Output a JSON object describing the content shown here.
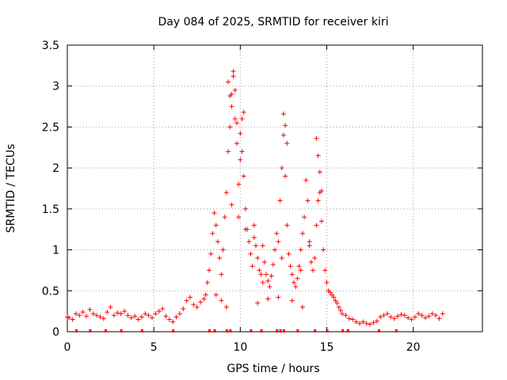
{
  "chart_data": {
    "type": "scatter",
    "title": "Day 084 of 2025, SRMTID for receiver kiri",
    "xlabel": "GPS time / hours",
    "ylabel": "SRMTID / TECUs",
    "xlim": [
      0,
      24
    ],
    "ylim": [
      0,
      3.5
    ],
    "grid": true,
    "marker": "+",
    "color": "#ff0000",
    "x_ticks": [
      "0",
      "5",
      "10",
      "15",
      "20"
    ],
    "x_tick_values": [
      0,
      5,
      10,
      15,
      20
    ],
    "y_ticks": [
      "0",
      "0.5",
      "1",
      "1.5",
      "2",
      "2.5",
      "3",
      "3.5"
    ],
    "y_tick_values": [
      0,
      0.5,
      1,
      1.5,
      2,
      2.5,
      3,
      3.5
    ],
    "baseline_markers_x": [
      0.5,
      1.3,
      2.2,
      3.1,
      4.3,
      6.1,
      8.2,
      8.5,
      9.2,
      9.4,
      10.6,
      11.2,
      12.1,
      12.3,
      12.5,
      13.3,
      14.3,
      15.0,
      15.9,
      16.2,
      18.0,
      19.0
    ],
    "series": [
      {
        "name": "SRMTID",
        "x": [
          0.0,
          0.1,
          0.3,
          0.5,
          0.7,
          0.9,
          1.1,
          1.3,
          1.5,
          1.7,
          1.9,
          2.1,
          2.3,
          2.5,
          2.7,
          2.9,
          3.1,
          3.3,
          3.5,
          3.7,
          3.9,
          4.1,
          4.3,
          4.5,
          4.7,
          4.9,
          5.1,
          5.3,
          5.5,
          5.7,
          5.9,
          6.1,
          6.3,
          6.5,
          6.7,
          6.9,
          7.1,
          7.3,
          7.5,
          7.7,
          7.9,
          8.0,
          8.1,
          8.2,
          8.3,
          8.4,
          8.5,
          8.6,
          8.7,
          8.8,
          8.9,
          9.0,
          9.1,
          9.2,
          9.3,
          9.4,
          9.5,
          9.6,
          9.7,
          9.8,
          9.9,
          10.0,
          10.1,
          10.2,
          10.3,
          10.4,
          10.5,
          10.6,
          10.7,
          10.8,
          10.9,
          11.0,
          11.1,
          11.2,
          11.3,
          11.4,
          11.5,
          11.6,
          11.7,
          11.8,
          11.9,
          12.0,
          12.1,
          12.2,
          12.3,
          12.4,
          12.5,
          12.6,
          12.7,
          12.8,
          12.9,
          13.0,
          13.1,
          13.2,
          13.3,
          13.4,
          13.5,
          13.6,
          13.7,
          13.8,
          13.9,
          14.0,
          14.1,
          14.2,
          14.3,
          14.4,
          14.5,
          14.6,
          14.7,
          14.8,
          14.9,
          15.0,
          15.1,
          15.2,
          15.3,
          15.4,
          15.5,
          15.6,
          15.7,
          15.8,
          15.9,
          16.1,
          16.3,
          16.5,
          16.7,
          16.9,
          17.1,
          17.3,
          17.5,
          17.7,
          17.9,
          18.1,
          18.3,
          18.5,
          18.7,
          18.9,
          19.1,
          19.3,
          19.5,
          19.7,
          19.9,
          20.1,
          20.3,
          20.5,
          20.7,
          20.9,
          21.1,
          21.3,
          21.5,
          21.7,
          9.3,
          9.4,
          9.5,
          9.6,
          9.7,
          9.8,
          10.0,
          10.1,
          10.2,
          12.5,
          12.6,
          12.7,
          14.4,
          14.5,
          14.6,
          14.7,
          9.5,
          9.9,
          10.3,
          10.8,
          11.3,
          12.4,
          13.5,
          14.0,
          8.6,
          8.9,
          9.2,
          11.0,
          11.6,
          12.2,
          13.0,
          13.6
        ],
        "y": [
          0.18,
          0.17,
          0.15,
          0.22,
          0.2,
          0.24,
          0.19,
          0.27,
          0.22,
          0.2,
          0.18,
          0.16,
          0.24,
          0.3,
          0.2,
          0.23,
          0.22,
          0.25,
          0.2,
          0.17,
          0.19,
          0.15,
          0.18,
          0.22,
          0.2,
          0.17,
          0.22,
          0.25,
          0.28,
          0.19,
          0.15,
          0.12,
          0.18,
          0.22,
          0.28,
          0.38,
          0.42,
          0.33,
          0.3,
          0.36,
          0.4,
          0.45,
          0.6,
          0.75,
          0.95,
          1.2,
          1.45,
          1.3,
          1.1,
          0.9,
          0.7,
          1.0,
          1.4,
          1.7,
          2.2,
          2.5,
          2.9,
          3.18,
          2.6,
          2.3,
          1.8,
          2.1,
          2.6,
          1.9,
          1.5,
          1.25,
          1.1,
          0.95,
          0.8,
          1.3,
          1.05,
          0.9,
          0.75,
          0.7,
          0.6,
          0.85,
          0.7,
          0.62,
          0.55,
          0.68,
          0.82,
          1.0,
          1.2,
          1.1,
          1.6,
          2.0,
          2.4,
          1.9,
          1.3,
          0.95,
          0.8,
          0.7,
          0.6,
          0.55,
          0.65,
          0.8,
          1.0,
          1.2,
          1.4,
          1.85,
          1.6,
          1.1,
          0.85,
          0.75,
          0.9,
          1.3,
          1.6,
          1.7,
          1.35,
          1.0,
          0.75,
          0.6,
          0.5,
          0.48,
          0.45,
          0.42,
          0.38,
          0.35,
          0.3,
          0.26,
          0.22,
          0.2,
          0.16,
          0.15,
          0.12,
          0.1,
          0.12,
          0.1,
          0.09,
          0.11,
          0.13,
          0.18,
          0.2,
          0.22,
          0.18,
          0.16,
          0.19,
          0.21,
          0.2,
          0.17,
          0.15,
          0.18,
          0.22,
          0.2,
          0.17,
          0.19,
          0.22,
          0.2,
          0.16,
          0.22,
          3.05,
          2.88,
          2.75,
          3.12,
          2.95,
          2.55,
          2.42,
          2.2,
          2.68,
          2.66,
          2.52,
          2.3,
          2.36,
          2.15,
          1.95,
          1.72,
          1.55,
          1.4,
          1.25,
          1.15,
          1.05,
          0.9,
          0.75,
          1.05,
          0.45,
          0.38,
          0.3,
          0.35,
          0.4,
          0.42,
          0.38,
          0.3
        ]
      }
    ]
  }
}
